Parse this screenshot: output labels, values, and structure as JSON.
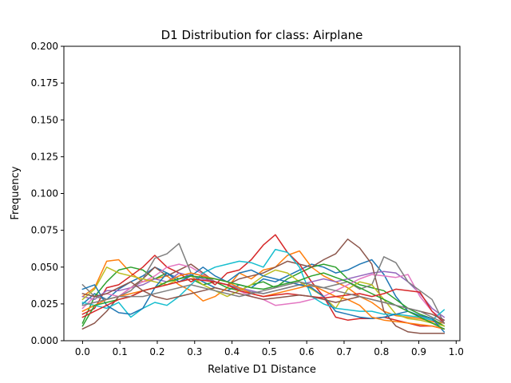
{
  "chart_data": {
    "type": "line",
    "title": "D1 Distribution for class: Airplane",
    "xlabel": "Relative D1 Distance",
    "ylabel": "Frequency",
    "xlim": [
      -0.05,
      1.01
    ],
    "ylim": [
      0,
      0.2
    ],
    "xticks": [
      0.0,
      0.1,
      0.2,
      0.3,
      0.4,
      0.5,
      0.6,
      0.7,
      0.8,
      0.9,
      1.0
    ],
    "xtick_labels": [
      "0.0",
      "0.1",
      "0.2",
      "0.3",
      "0.4",
      "0.5",
      "0.6",
      "0.7",
      "0.8",
      "0.9",
      "1.0"
    ],
    "yticks": [
      0.0,
      0.025,
      0.05,
      0.075,
      0.1,
      0.125,
      0.15,
      0.175,
      0.2
    ],
    "ytick_labels": [
      "0.000",
      "0.025",
      "0.050",
      "0.075",
      "0.100",
      "0.125",
      "0.150",
      "0.175",
      "0.200"
    ],
    "grid": false,
    "legend": "none",
    "x": [
      0.0,
      0.0323,
      0.0645,
      0.0968,
      0.129,
      0.1613,
      0.1935,
      0.2258,
      0.2581,
      0.2903,
      0.3226,
      0.3548,
      0.3871,
      0.4194,
      0.4516,
      0.4839,
      0.5161,
      0.5484,
      0.5806,
      0.6129,
      0.6452,
      0.6774,
      0.7097,
      0.7419,
      0.7742,
      0.8065,
      0.8387,
      0.871,
      0.9032,
      0.9355,
      0.9677
    ],
    "series": [
      {
        "color": "#1f77b4",
        "values": [
          0.025,
          0.032,
          0.028,
          0.035,
          0.04,
          0.044,
          0.05,
          0.046,
          0.042,
          0.045,
          0.04,
          0.036,
          0.034,
          0.038,
          0.036,
          0.042,
          0.04,
          0.044,
          0.048,
          0.052,
          0.05,
          0.046,
          0.048,
          0.052,
          0.055,
          0.045,
          0.03,
          0.02,
          0.016,
          0.014,
          0.01
        ]
      },
      {
        "color": "#ff7f0e",
        "values": [
          0.03,
          0.036,
          0.054,
          0.055,
          0.046,
          0.04,
          0.042,
          0.044,
          0.038,
          0.034,
          0.027,
          0.03,
          0.036,
          0.046,
          0.042,
          0.048,
          0.05,
          0.058,
          0.061,
          0.05,
          0.044,
          0.04,
          0.036,
          0.03,
          0.026,
          0.02,
          0.017,
          0.016,
          0.015,
          0.013,
          0.012
        ]
      },
      {
        "color": "#2ca02c",
        "values": [
          0.012,
          0.03,
          0.04,
          0.048,
          0.05,
          0.048,
          0.042,
          0.046,
          0.04,
          0.042,
          0.038,
          0.04,
          0.036,
          0.034,
          0.038,
          0.04,
          0.036,
          0.042,
          0.046,
          0.05,
          0.052,
          0.05,
          0.042,
          0.038,
          0.036,
          0.034,
          0.028,
          0.022,
          0.018,
          0.015,
          0.01
        ]
      },
      {
        "color": "#d62728",
        "values": [
          0.018,
          0.022,
          0.036,
          0.038,
          0.044,
          0.05,
          0.058,
          0.05,
          0.046,
          0.04,
          0.044,
          0.038,
          0.046,
          0.048,
          0.055,
          0.065,
          0.072,
          0.06,
          0.052,
          0.04,
          0.03,
          0.016,
          0.014,
          0.015,
          0.015,
          0.016,
          0.014,
          0.012,
          0.01,
          0.01,
          0.008
        ]
      },
      {
        "color": "#9467bd",
        "values": [
          0.03,
          0.028,
          0.034,
          0.034,
          0.036,
          0.038,
          0.042,
          0.04,
          0.046,
          0.044,
          0.042,
          0.04,
          0.038,
          0.036,
          0.034,
          0.032,
          0.034,
          0.036,
          0.038,
          0.04,
          0.042,
          0.04,
          0.042,
          0.044,
          0.046,
          0.047,
          0.046,
          0.04,
          0.032,
          0.022,
          0.016
        ]
      },
      {
        "color": "#8c564b",
        "values": [
          0.008,
          0.012,
          0.02,
          0.03,
          0.036,
          0.042,
          0.05,
          0.044,
          0.048,
          0.052,
          0.046,
          0.04,
          0.038,
          0.042,
          0.044,
          0.046,
          0.05,
          0.054,
          0.052,
          0.05,
          0.055,
          0.059,
          0.069,
          0.063,
          0.052,
          0.02,
          0.01,
          0.006,
          0.005,
          0.005,
          0.005
        ]
      },
      {
        "color": "#e377c2",
        "values": [
          0.022,
          0.03,
          0.032,
          0.03,
          0.036,
          0.04,
          0.044,
          0.05,
          0.052,
          0.05,
          0.045,
          0.04,
          0.038,
          0.034,
          0.03,
          0.028,
          0.024,
          0.025,
          0.026,
          0.028,
          0.03,
          0.034,
          0.038,
          0.042,
          0.045,
          0.044,
          0.043,
          0.045,
          0.03,
          0.02,
          0.014
        ]
      },
      {
        "color": "#7f7f7f",
        "values": [
          0.038,
          0.03,
          0.028,
          0.03,
          0.034,
          0.042,
          0.056,
          0.059,
          0.066,
          0.046,
          0.044,
          0.04,
          0.038,
          0.035,
          0.033,
          0.032,
          0.034,
          0.036,
          0.038,
          0.037,
          0.036,
          0.038,
          0.04,
          0.035,
          0.038,
          0.057,
          0.053,
          0.04,
          0.034,
          0.028,
          0.012
        ]
      },
      {
        "color": "#bcbd22",
        "values": [
          0.028,
          0.035,
          0.05,
          0.046,
          0.044,
          0.042,
          0.04,
          0.038,
          0.042,
          0.044,
          0.038,
          0.034,
          0.03,
          0.034,
          0.038,
          0.044,
          0.048,
          0.046,
          0.04,
          0.035,
          0.03,
          0.022,
          0.035,
          0.04,
          0.038,
          0.028,
          0.018,
          0.015,
          0.014,
          0.012,
          0.01
        ]
      },
      {
        "color": "#17becf",
        "values": [
          0.026,
          0.024,
          0.022,
          0.026,
          0.016,
          0.022,
          0.026,
          0.024,
          0.03,
          0.038,
          0.046,
          0.05,
          0.052,
          0.054,
          0.053,
          0.05,
          0.062,
          0.06,
          0.05,
          0.03,
          0.025,
          0.022,
          0.021,
          0.02,
          0.02,
          0.018,
          0.018,
          0.017,
          0.016,
          0.014,
          0.021
        ]
      },
      {
        "color": "#1f77b4",
        "values": [
          0.035,
          0.038,
          0.024,
          0.019,
          0.018,
          0.022,
          0.036,
          0.046,
          0.04,
          0.044,
          0.05,
          0.044,
          0.04,
          0.046,
          0.048,
          0.044,
          0.042,
          0.04,
          0.038,
          0.036,
          0.03,
          0.02,
          0.018,
          0.016,
          0.015,
          0.016,
          0.018,
          0.02,
          0.017,
          0.015,
          0.006
        ]
      },
      {
        "color": "#ff7f0e",
        "values": [
          0.02,
          0.024,
          0.028,
          0.03,
          0.032,
          0.034,
          0.036,
          0.04,
          0.044,
          0.046,
          0.044,
          0.042,
          0.04,
          0.036,
          0.032,
          0.03,
          0.032,
          0.034,
          0.036,
          0.038,
          0.034,
          0.03,
          0.028,
          0.024,
          0.016,
          0.014,
          0.013,
          0.012,
          0.011,
          0.01,
          0.008
        ]
      },
      {
        "color": "#2ca02c",
        "values": [
          0.01,
          0.024,
          0.026,
          0.028,
          0.03,
          0.034,
          0.036,
          0.04,
          0.042,
          0.044,
          0.043,
          0.042,
          0.04,
          0.038,
          0.036,
          0.035,
          0.037,
          0.039,
          0.041,
          0.044,
          0.046,
          0.043,
          0.04,
          0.036,
          0.032,
          0.028,
          0.024,
          0.02,
          0.016,
          0.012,
          0.008
        ]
      },
      {
        "color": "#d62728",
        "values": [
          0.016,
          0.02,
          0.024,
          0.028,
          0.03,
          0.034,
          0.036,
          0.038,
          0.04,
          0.042,
          0.041,
          0.04,
          0.038,
          0.034,
          0.032,
          0.03,
          0.031,
          0.032,
          0.031,
          0.03,
          0.029,
          0.03,
          0.031,
          0.032,
          0.03,
          0.032,
          0.035,
          0.034,
          0.033,
          0.02,
          0.012
        ]
      },
      {
        "color": "#8c564b",
        "values": [
          0.032,
          0.03,
          0.032,
          0.036,
          0.04,
          0.034,
          0.03,
          0.028,
          0.03,
          0.032,
          0.034,
          0.036,
          0.034,
          0.032,
          0.03,
          0.028,
          0.029,
          0.03,
          0.031,
          0.03,
          0.028,
          0.026,
          0.028,
          0.03,
          0.028,
          0.026,
          0.024,
          0.022,
          0.02,
          0.018,
          0.014
        ]
      },
      {
        "color": "#7f7f7f",
        "values": [
          0.024,
          0.026,
          0.028,
          0.03,
          0.03,
          0.03,
          0.032,
          0.034,
          0.036,
          0.038,
          0.036,
          0.034,
          0.032,
          0.03,
          0.032,
          0.034,
          0.036,
          0.038,
          0.04,
          0.038,
          0.036,
          0.034,
          0.032,
          0.03,
          0.028,
          0.026,
          0.024,
          0.022,
          0.02,
          0.016,
          0.012
        ]
      }
    ]
  }
}
